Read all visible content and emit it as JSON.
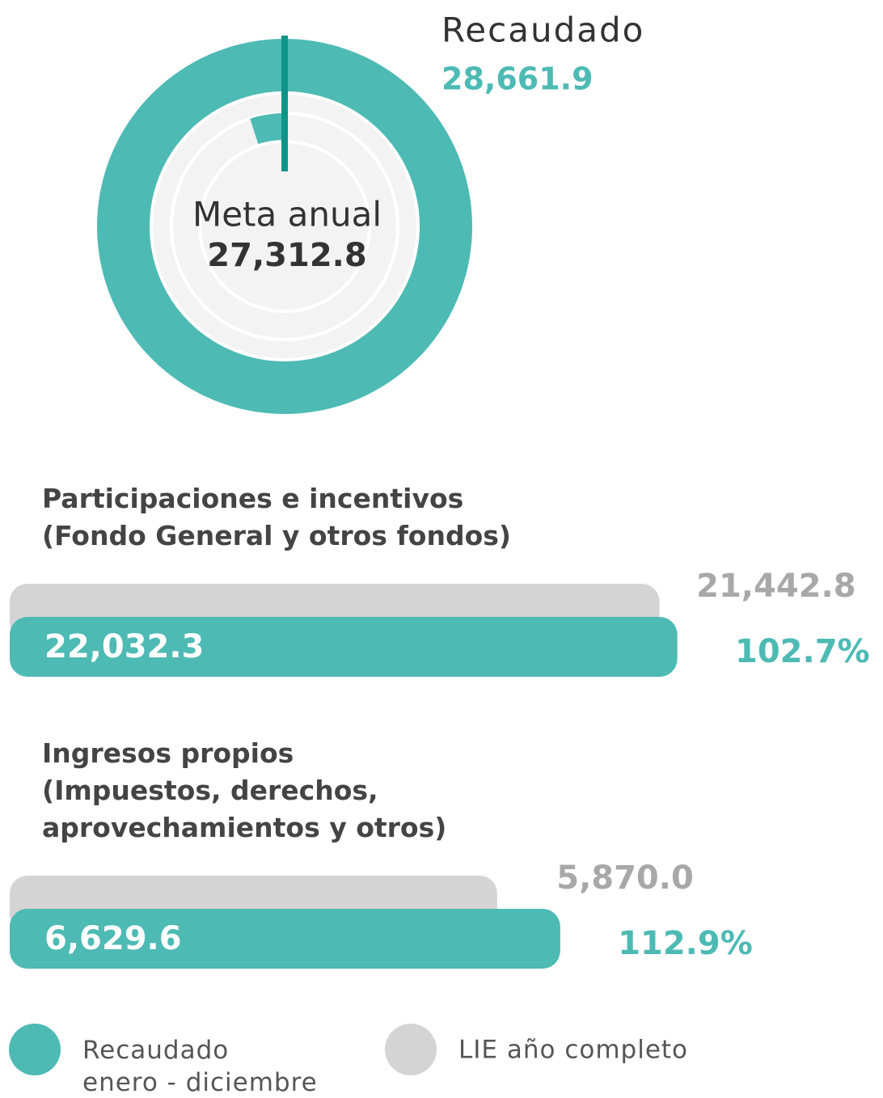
{
  "chart_data": [
    {
      "type": "gauge",
      "label": "Recaudado",
      "value": 28661.9,
      "value_label": "28,661.9",
      "color": "#4dbab4",
      "marker_color": "#0f9488",
      "target_label": "Meta anual",
      "target": 27312.8,
      "target_value_label": "27,312.8"
    },
    {
      "type": "bar",
      "title": "Participaciones e incentivos\n(Fondo General y otros fondos)",
      "xlim": [
        0,
        28500
      ],
      "series": [
        {
          "color": "#d4d4d4",
          "values": [
            21442.8
          ],
          "value_labels": [
            "21,442.8"
          ]
        },
        {
          "color": "#4dbab4",
          "values": [
            22032.3
          ],
          "value_labels": [
            "22,032.3"
          ]
        }
      ],
      "percent": 102.7,
      "percent_label": "102.7%"
    },
    {
      "type": "bar",
      "title": "Ingresos propios\n(Impuestos, derechos,\naprovechamientos y otros)",
      "xlim": [
        0,
        10400
      ],
      "series": [
        {
          "color": "#d4d4d4",
          "values": [
            5870.0
          ],
          "value_labels": [
            "5,870.0"
          ]
        },
        {
          "color": "#4dbab4",
          "values": [
            6629.6
          ],
          "value_labels": [
            "6,629.6"
          ]
        }
      ],
      "percent": 112.9,
      "percent_label": "112.9%"
    }
  ],
  "legend": {
    "items": [
      {
        "name": "Recaudado\nenero - diciembre",
        "color": "#4dbab4"
      },
      {
        "name": "LIE año completo",
        "color": "#d4d4d4"
      }
    ]
  }
}
